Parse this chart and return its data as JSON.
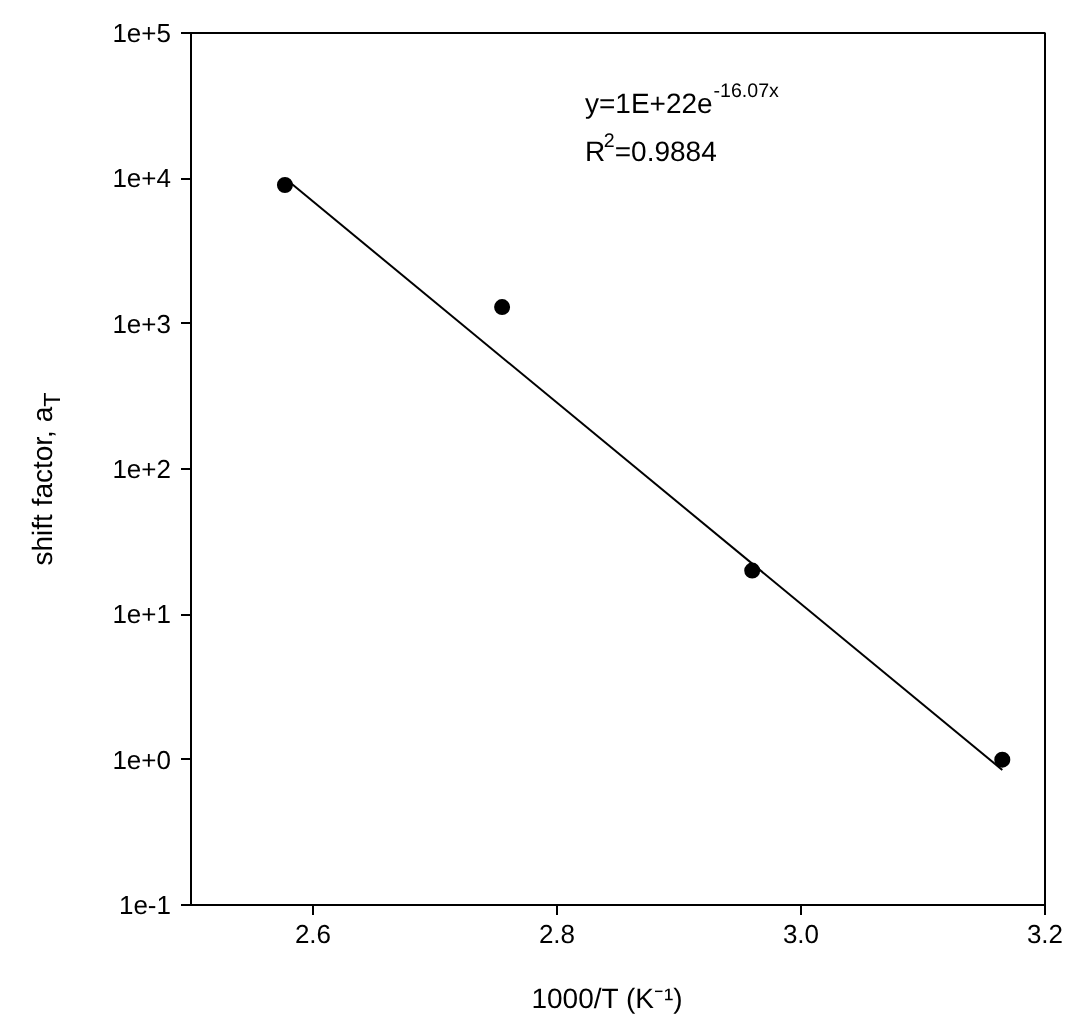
{
  "chart_data": {
    "type": "scatter",
    "xlabel": "1000/T (K⁻¹)",
    "ylabel": "shift factor, a$_{T}$",
    "x": [
      2.577,
      2.755,
      2.96,
      3.165
    ],
    "series": [
      {
        "color": "#000000",
        "marker": "circle",
        "values": [
          9000,
          1300,
          20,
          1
        ]
      },
      {
        "type": "line",
        "color": "#000000",
        "marker": "none",
        "line_style": "solid",
        "x": [
          2.577,
          3.165
        ],
        "values": [
          10000,
          0.85
        ]
      }
    ],
    "annotations": [
      "y=1E+22e$^{-16.07x}$",
      "R$^{2}$=0.9884"
    ],
    "log": "y",
    "grid": false,
    "xlim": [
      2.5,
      3.2
    ],
    "xticks": [
      2.6,
      2.8,
      {
        "value": 3.0,
        "label": "3.0"
      },
      3.2
    ],
    "ylim": [
      0.1,
      100000
    ],
    "yticks": [
      {
        "value": 0.1,
        "label": "1e-1"
      },
      {
        "value": 1,
        "label": "1e+0"
      },
      {
        "value": 10,
        "label": "1e+1"
      },
      {
        "value": 100,
        "label": "1e+2"
      },
      {
        "value": 1000,
        "label": "1e+3"
      },
      {
        "value": 10000,
        "label": "1e+4"
      },
      {
        "value": 100000,
        "label": "1e+5"
      }
    ]
  }
}
